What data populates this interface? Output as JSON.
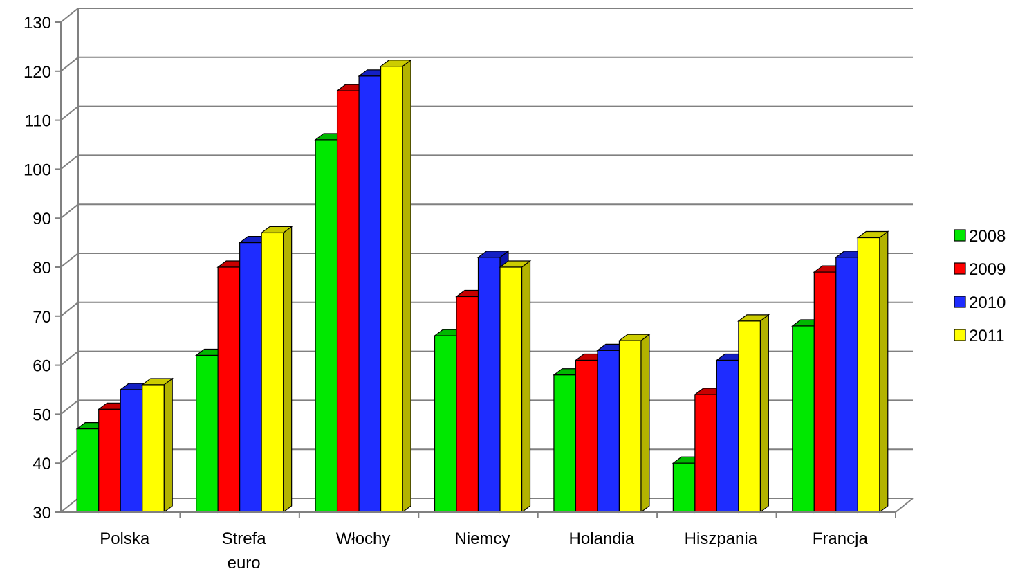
{
  "chart_data": {
    "type": "bar",
    "title": "",
    "xlabel": "",
    "ylabel": "",
    "categories": [
      [
        "Polska"
      ],
      [
        "Strefa",
        "euro"
      ],
      [
        "Włochy"
      ],
      [
        "Niemcy"
      ],
      [
        "Holandia"
      ],
      [
        "Hiszpania"
      ],
      [
        "Francja"
      ]
    ],
    "series": [
      {
        "name": "2008",
        "color": "#00e800",
        "side": "#00a000",
        "top": "#00b800",
        "values": [
          47,
          62,
          106,
          66,
          58,
          40,
          68
        ]
      },
      {
        "name": "2009",
        "color": "#ff0000",
        "side": "#b00000",
        "top": "#c80000",
        "values": [
          51,
          80,
          116,
          74,
          61,
          54,
          79
        ]
      },
      {
        "name": "2010",
        "color": "#1e2cff",
        "side": "#0d14a8",
        "top": "#1420c4",
        "values": [
          55,
          85,
          119,
          82,
          63,
          61,
          82
        ]
      },
      {
        "name": "2011",
        "color": "#ffff00",
        "side": "#b3b300",
        "top": "#cccc00",
        "values": [
          56,
          87,
          121,
          80,
          65,
          69,
          86
        ]
      }
    ],
    "yticks": [
      "30",
      "40",
      "50",
      "60",
      "70",
      "80",
      "90",
      "100",
      "110",
      "120",
      "130"
    ],
    "ylim": [
      30,
      130
    ],
    "grid": true,
    "legend_position": "right"
  }
}
